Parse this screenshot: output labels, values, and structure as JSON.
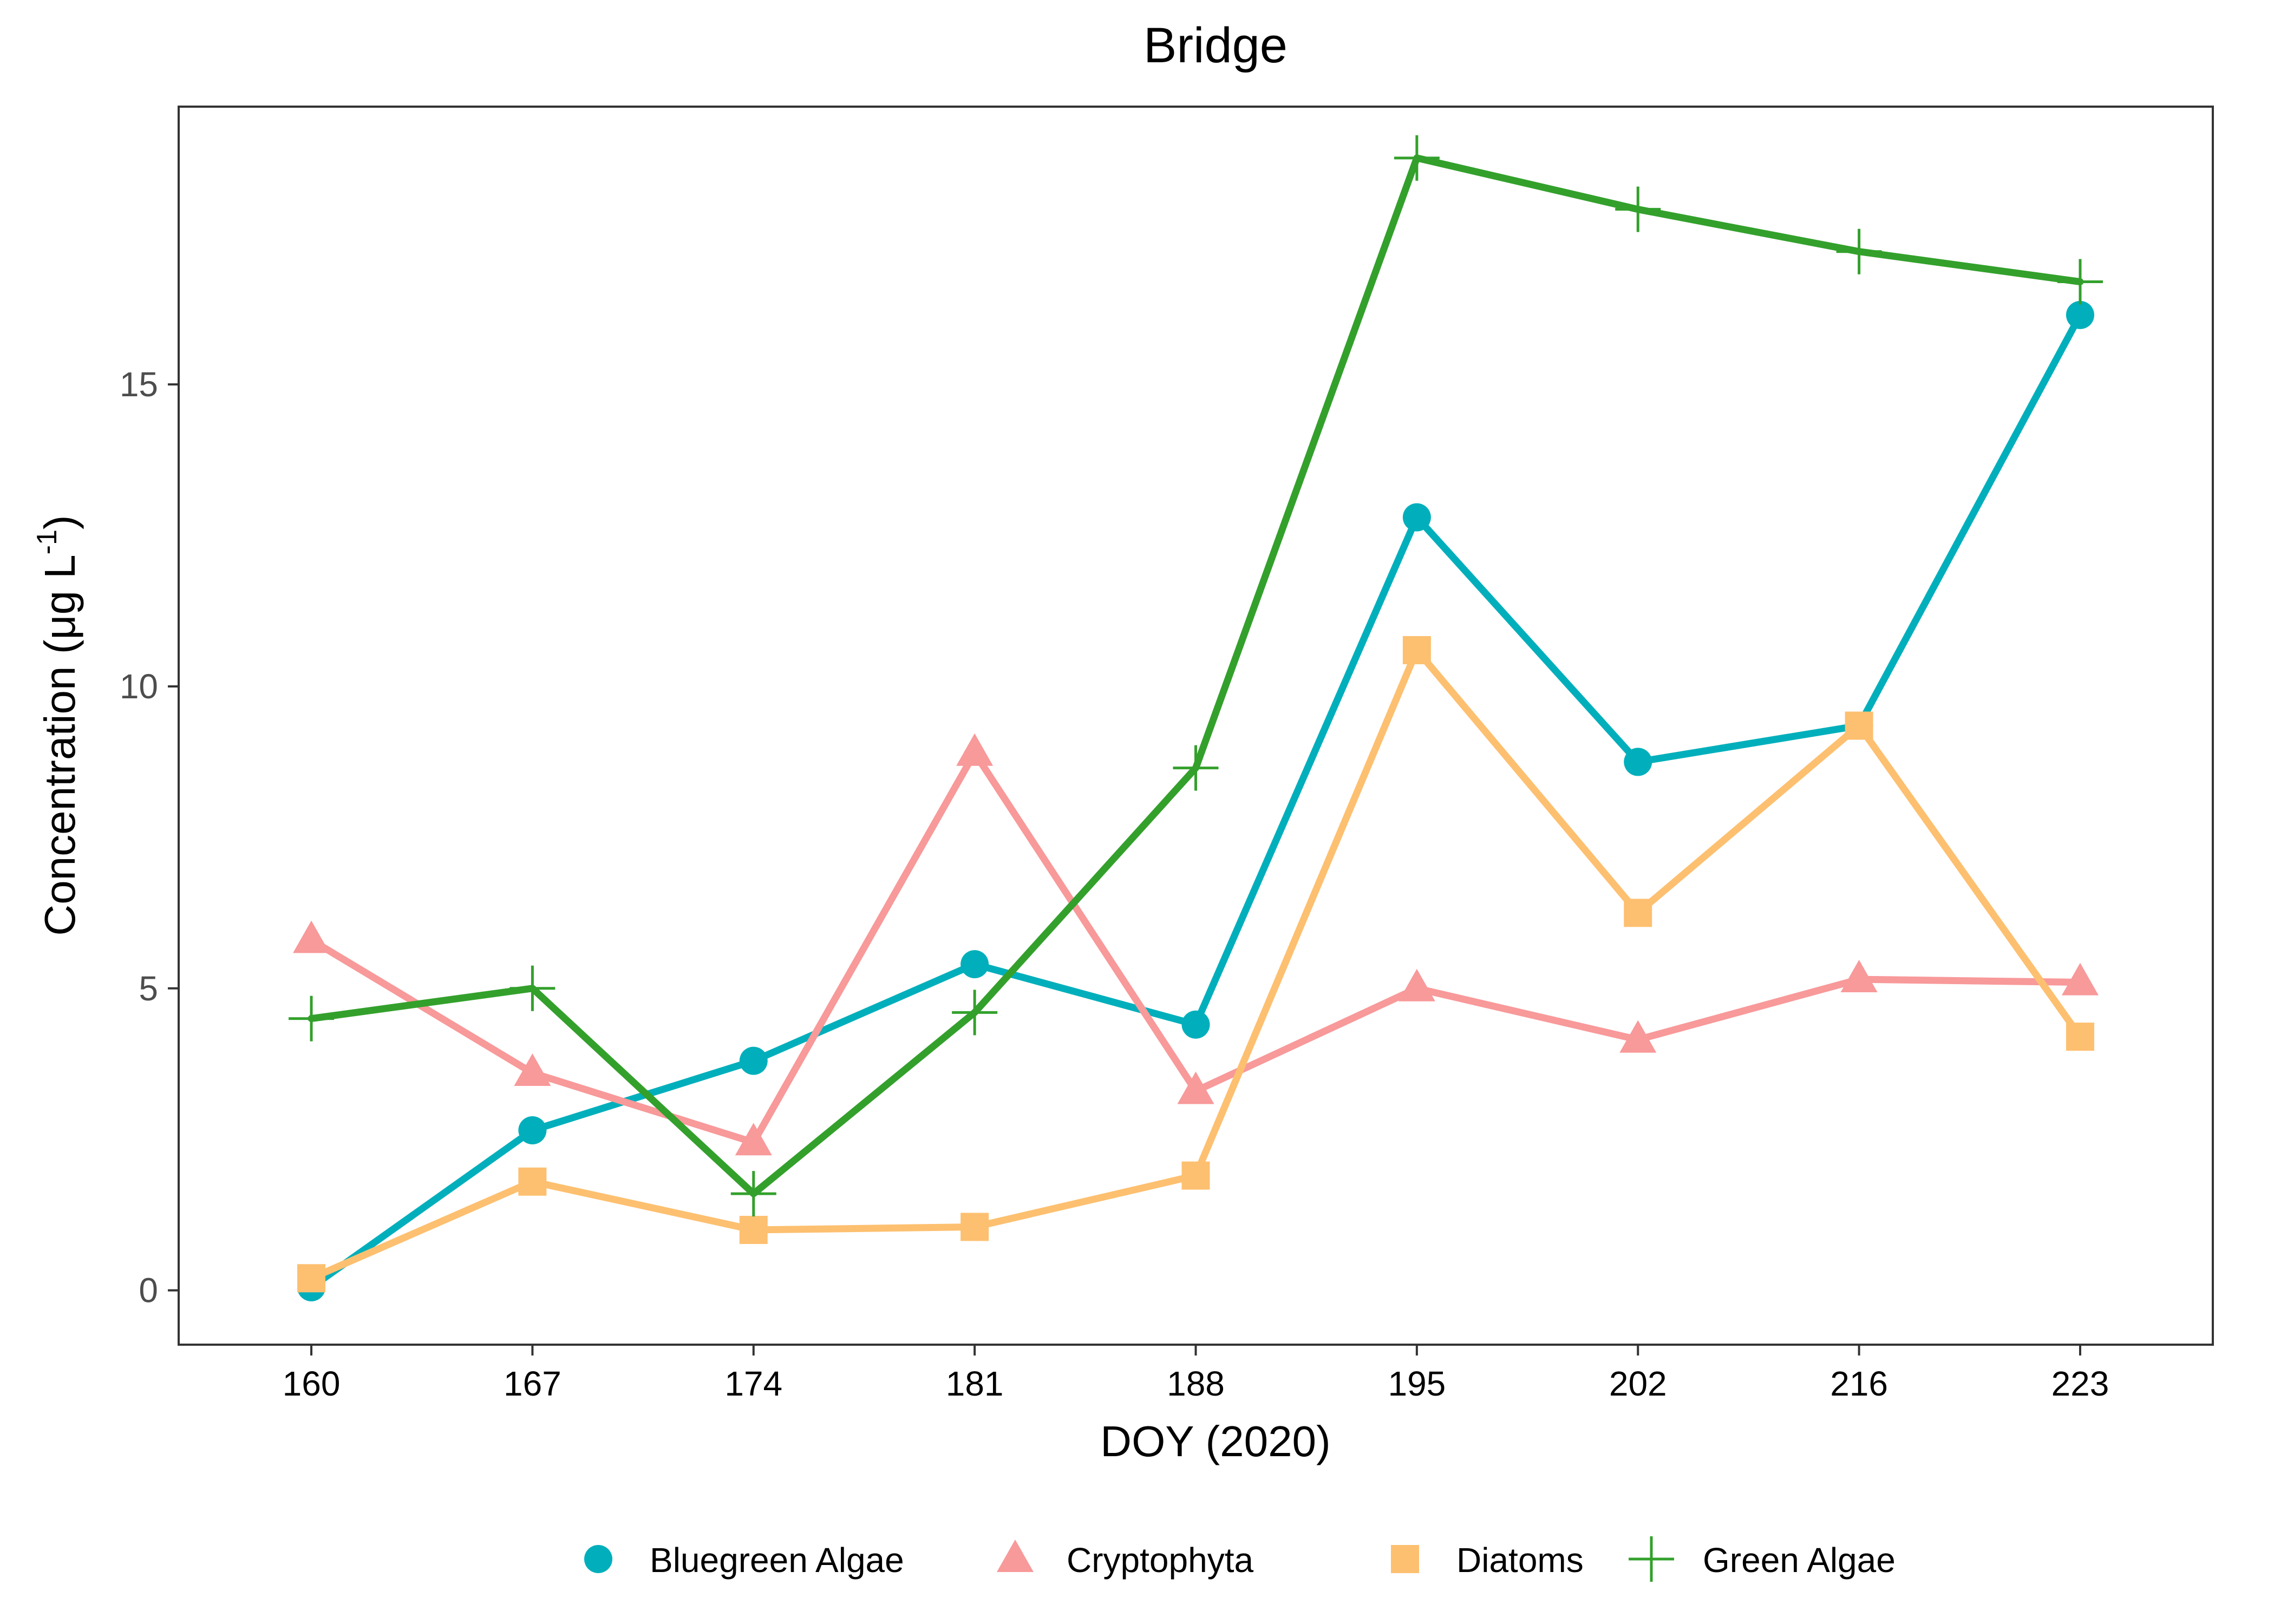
{
  "chart_data": {
    "type": "line",
    "title": "Bridge",
    "xlabel": "DOY (2020)",
    "ylabel": "Concentration (μg L",
    "ylabel_sup": "-1",
    "ylabel_close": ")",
    "categories": [
      "160",
      "167",
      "174",
      "181",
      "188",
      "195",
      "202",
      "216",
      "223"
    ],
    "ylim": [
      -0.9,
      19.6
    ],
    "yticks": [
      0,
      5,
      10,
      15
    ],
    "grid": false,
    "legend_position": "bottom",
    "series": [
      {
        "name": "Bluegreen Algae",
        "color": "#00AFBB",
        "marker": "circle",
        "values": [
          0.05,
          2.65,
          3.8,
          5.4,
          4.4,
          12.8,
          8.75,
          9.35,
          16.15
        ]
      },
      {
        "name": "Cryptophyta",
        "color": "#F8999A",
        "marker": "triangle",
        "values": [
          5.8,
          3.6,
          2.45,
          8.9,
          3.3,
          5.0,
          4.15,
          5.15,
          5.1
        ]
      },
      {
        "name": "Diatoms",
        "color": "#FDC070",
        "marker": "square",
        "values": [
          0.2,
          1.8,
          1.0,
          1.05,
          1.9,
          10.6,
          6.25,
          9.35,
          4.2
        ]
      },
      {
        "name": "Green Algae",
        "color": "#33A02C",
        "marker": "plus",
        "values": [
          4.5,
          5.0,
          1.6,
          4.6,
          8.65,
          18.75,
          17.9,
          17.2,
          16.7
        ]
      }
    ]
  }
}
